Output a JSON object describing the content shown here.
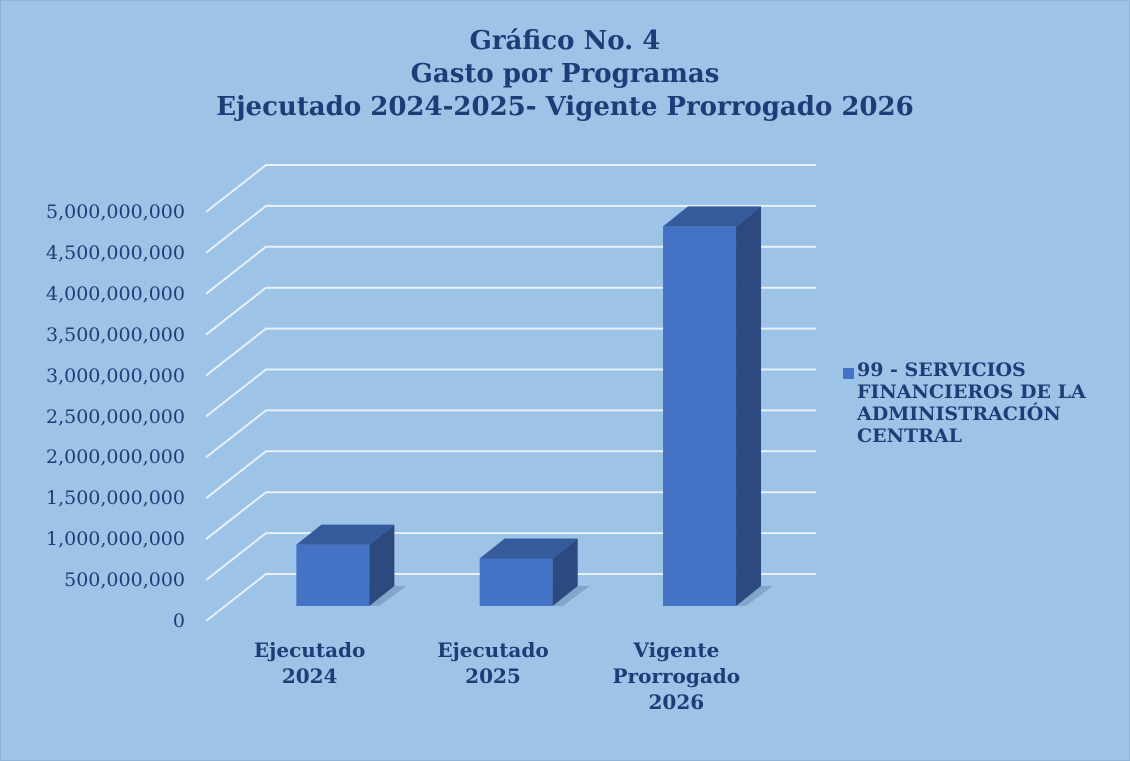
{
  "chart_data": {
    "type": "bar",
    "title": [
      "Gráfico No. 4",
      "Gasto por Programas",
      "Ejecutado 2024-2025- Vigente Prorrogado 2026"
    ],
    "categories": [
      "Ejecutado 2024",
      "Ejecutado 2025",
      "Vigente Prorrogado 2026"
    ],
    "series": [
      {
        "name": "99 - SERVICIOS FINANCIEROS DE LA ADMINISTRACIÓN CENTRAL",
        "color": "#4472c4",
        "values": [
          750000000,
          580000000,
          4640000000
        ]
      }
    ],
    "ylim": [
      0,
      5000000000
    ],
    "yticks": [
      0,
      {
        "value": 500000000,
        "label": "500,000,000"
      },
      {
        "value": 1000000000,
        "label": "1,000,000,000"
      },
      {
        "value": 1500000000,
        "label": "1,500,000,000"
      },
      {
        "value": 2000000000,
        "label": "2,000,000,000"
      },
      {
        "value": 2500000000,
        "label": "2,500,000,000"
      },
      {
        "value": 3000000000,
        "label": "3,000,000,000"
      },
      {
        "value": 3500000000,
        "label": "3,500,000,000"
      },
      {
        "value": 4000000000,
        "label": "4,000,000,000"
      },
      {
        "value": 4500000000,
        "label": "4,500,000,000"
      },
      {
        "value": 5000000000,
        "label": "5,000,000,000"
      }
    ],
    "grid": true,
    "legend": "right"
  }
}
